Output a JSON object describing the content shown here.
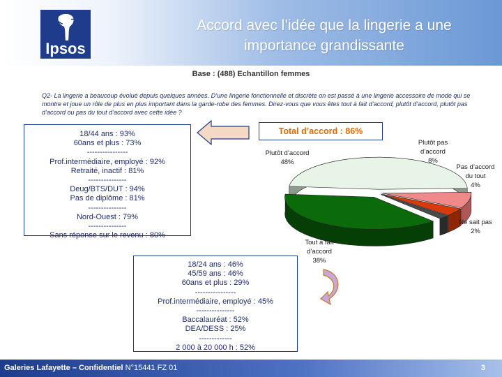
{
  "header": {
    "logo_text": "Ipsos",
    "title_line1": "Accord avec l’idée que la lingerie a une",
    "title_line2": "importance grandissante"
  },
  "base": "Base : (488) Echantillon  femmes",
  "question": "Q2- La lingerie a beaucoup évolué depuis quelques années. D’une lingerie fonctionnelle et discrète on est passé à une lingerie accessoire de mode qui se montre et joue un rôle de plus en plus important dans la garde-robe des femmes. Direz-vous que vous êtes tout à fait d’accord, plutôt d’accord, plutôt pas d’accord ou pas du tout d’accord avec cette idée ?",
  "total_accord": "Total  d’accord : 86%",
  "box_plutot": [
    "18/44 ans : 93%",
    "60ans et plus : 73%",
    "----------------",
    "Prof.intermédiaire, employé : 92%",
    "Retraité, inactif : 81%",
    "---------------",
    "Deug/BTS/DUT : 94%",
    "Pas de diplôme : 81%",
    "---------------",
    "Nord-Ouest : 79%",
    "---------------",
    "Sans réponse sur le revenu : 80%"
  ],
  "box_tout": [
    "18/24 ans : 46%",
    "45/59 ans : 46%",
    "60ans et plus : 29%",
    "----------------",
    "Prof.intermédiaire, employé : 45%",
    "---------------",
    "Baccalauréat : 52%",
    "DEA/DESS : 25%",
    "-------------",
    "2 000 à 20 000 h : 52%"
  ],
  "footer": {
    "left_bold": "Galeries Lafayette – Confidentiel",
    "left_rest": " N°15441 FZ 01",
    "page": "3"
  },
  "colors": {
    "brand": "#1f3c8c",
    "accent": "#e06a00",
    "plutot_accord": "#e8f4e8",
    "tout_a_fait": "#0b6b0b",
    "plutot_pas": "#f08a8a",
    "pas_du_tout": "#d83a0a",
    "ne_sait_pas": "#4a4a4a"
  },
  "chart_data": {
    "type": "pie",
    "title": "",
    "slices": [
      {
        "label_lines": [
          "Plutôt d’accord",
          "48%"
        ],
        "value": 48
      },
      {
        "label_lines": [
          "Plutôt pas",
          "d’accord",
          "8%"
        ],
        "value": 8
      },
      {
        "label_lines": [
          "Pas d’accord",
          "du tout",
          "4%"
        ],
        "value": 4
      },
      {
        "label_lines": [
          "Ne sait pas",
          "2%"
        ],
        "value": 2
      },
      {
        "label_lines": [
          "Tout à fait",
          "d’accord",
          "38%"
        ],
        "value": 38
      }
    ]
  }
}
